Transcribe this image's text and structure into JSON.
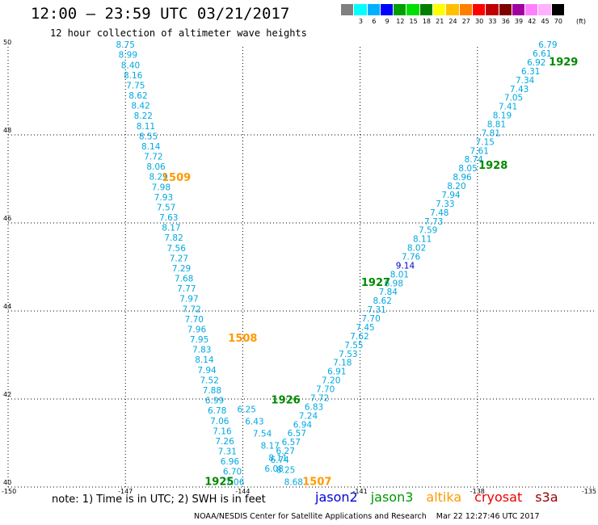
{
  "header": {
    "title": "12:00 — 23:59 UTC 03/21/2017",
    "subtitle": "12 hour collection of altimeter wave heights"
  },
  "colorbar": {
    "colors": [
      "#808080",
      "#00ffff",
      "#00b0ff",
      "#0000ff",
      "#00a000",
      "#00e000",
      "#008000",
      "#ffff00",
      "#ffc000",
      "#ff8000",
      "#ff0000",
      "#c00000",
      "#800000",
      "#a000a0",
      "#ff80ff",
      "#ffb0ff",
      "#000000"
    ],
    "labels": [
      "",
      "3",
      "6",
      "9",
      "12",
      "15",
      "18",
      "21",
      "24",
      "27",
      "30",
      "33",
      "36",
      "39",
      "42",
      "45",
      "70"
    ],
    "unit": "(ft)"
  },
  "chart_data": {
    "type": "scatter",
    "xlim": [
      -150,
      -135
    ],
    "ylim": [
      40,
      50
    ],
    "x_ticks": [
      "-150",
      "-147",
      "-144",
      "-141",
      "-138",
      "-135"
    ],
    "y_ticks": [
      "40",
      "42",
      "44",
      "46",
      "48",
      "50"
    ],
    "grid": true,
    "colors": {
      "swh": "#00a8e0",
      "orange": "#ff9900",
      "green": "#008800",
      "blue": "#0000cc"
    },
    "tracks": [
      {
        "name": "track-1509-1508",
        "start": [
          -147.0,
          49.98
        ],
        "end": [
          -144.2,
          40.05
        ],
        "labels": [
          "8.75",
          "8.99",
          "8.40",
          "8.16",
          "7.75",
          "8.62",
          "8.42",
          "8.22",
          "8.11",
          "8.55",
          "8.14",
          "7.72",
          "8.06",
          "8.29",
          "7.98",
          "7.93",
          "7.57",
          "7.63",
          "8.17",
          "7.82",
          "7.56",
          "7.27",
          "7.29",
          "7.68",
          "7.77",
          "7.97",
          "7.72",
          "7.70",
          "7.96",
          "7.95",
          "7.83",
          "8.14",
          "7.94",
          "7.52",
          "7.88",
          "6.99",
          "6.78",
          "7.06",
          "7.16",
          "7.26",
          "7.31",
          "6.96",
          "6.70",
          "7.06"
        ]
      },
      {
        "name": "track-1929-1925",
        "start": [
          -136.2,
          49.98
        ],
        "end": [
          -143.2,
          40.35
        ],
        "labels": [
          "6.79",
          "6.61",
          "6.92",
          "6.31",
          "7.34",
          "7.43",
          "7.05",
          "7.41",
          "8.19",
          "8.81",
          "7.81",
          "7.15",
          "7.61",
          "8.74",
          "8.05",
          "8.96",
          "8.20",
          "7.94",
          "7.33",
          "7.48",
          "7.73",
          "7.59",
          "8.11",
          "8.02",
          "7.76",
          "9.14",
          "8.01",
          "6.98",
          "7.84",
          "8.62",
          "7.31",
          "7.70",
          "7.45",
          "7.62",
          "7.55",
          "7.53",
          "7.18",
          "6.91",
          "7.20",
          "7.70",
          "7.72",
          "6.83",
          "7.24",
          "6.94",
          "6.57",
          "6.57",
          "6.27",
          "6.74",
          "6.08"
        ]
      },
      {
        "name": "track-1926-1507",
        "start": [
          -143.9,
          41.7
        ],
        "end": [
          -142.7,
          40.05
        ],
        "labels": [
          "6.25",
          "6.43",
          "7.54",
          "8.17",
          "8.11",
          "8.25",
          "8.68"
        ]
      }
    ],
    "highlight_value": "9.14",
    "pass_labels": [
      {
        "text": "1929",
        "x": -135.8,
        "y": 49.58,
        "color": "green"
      },
      {
        "text": "1928",
        "x": -137.6,
        "y": 47.23,
        "color": "green"
      },
      {
        "text": "1927",
        "x": -140.6,
        "y": 44.57,
        "color": "green"
      },
      {
        "text": "1926",
        "x": -142.9,
        "y": 41.9,
        "color": "green"
      },
      {
        "text": "1925",
        "x": -144.6,
        "y": 40.05,
        "color": "green"
      },
      {
        "text": "1509",
        "x": -145.7,
        "y": 46.95,
        "color": "orange"
      },
      {
        "text": "1508",
        "x": -144.0,
        "y": 43.3,
        "color": "orange"
      },
      {
        "text": "1507",
        "x": -142.1,
        "y": 40.05,
        "color": "orange"
      }
    ]
  },
  "footer": {
    "note": "note: 1) Time is in UTC; 2) SWH is in feet",
    "legend": [
      {
        "label": "jason2",
        "color": "#0000dd"
      },
      {
        "label": "jason3",
        "color": "#009900"
      },
      {
        "label": "altika",
        "color": "#ff9900"
      },
      {
        "label": "cryosat",
        "color": "#ee0000"
      },
      {
        "label": "s3a",
        "color": "#990000"
      }
    ],
    "credit": "NOAA/NESDIS Center for Satellite Applications and Research    Mar 22 12:27:46 UTC 2017"
  }
}
